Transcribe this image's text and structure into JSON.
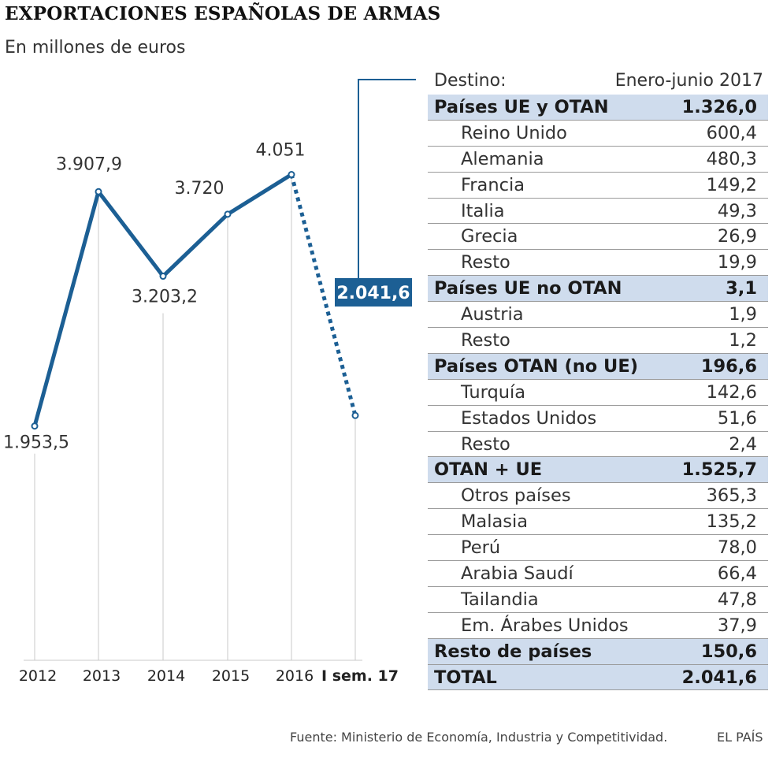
{
  "title": "EXPORTACIONES ESPAÑOLAS DE ARMAS",
  "subtitle": "En millones de euros",
  "colors": {
    "line": "#1c5f94",
    "group_bg": "#cfdced",
    "callout": "#1c5f94",
    "grid": "#c8c8c8"
  },
  "chart_data": {
    "type": "line",
    "categories": [
      "2012",
      "2013",
      "2014",
      "2015",
      "2016",
      "I sem. 17"
    ],
    "values": [
      1953.5,
      3907.9,
      3203.2,
      3720,
      4051,
      2041.6
    ],
    "labels": [
      "1.953,5",
      "3.907,9",
      "3.203,2",
      "3.720",
      "4.051",
      "2.041,6"
    ],
    "last_point_style": "dotted",
    "ylim": [
      0,
      4051
    ],
    "grid": "vertical drop lines"
  },
  "table": {
    "header_left": "Destino:",
    "header_right": "Enero-junio 2017",
    "rows": [
      {
        "name": "Países UE y OTAN",
        "value": "1.326,0",
        "group": true
      },
      {
        "name": "Reino Unido",
        "value": "600,4",
        "group": false
      },
      {
        "name": "Alemania",
        "value": "480,3",
        "group": false
      },
      {
        "name": "Francia",
        "value": "149,2",
        "group": false
      },
      {
        "name": "Italia",
        "value": "49,3",
        "group": false
      },
      {
        "name": "Grecia",
        "value": "26,9",
        "group": false
      },
      {
        "name": "Resto",
        "value": "19,9",
        "group": false
      },
      {
        "name": "Países UE no OTAN",
        "value": "3,1",
        "group": true
      },
      {
        "name": "Austria",
        "value": "1,9",
        "group": false
      },
      {
        "name": "Resto",
        "value": "1,2",
        "group": false
      },
      {
        "name": "Países OTAN (no UE)",
        "value": "196,6",
        "group": true
      },
      {
        "name": "Turquía",
        "value": "142,6",
        "group": false
      },
      {
        "name": "Estados Unidos",
        "value": "51,6",
        "group": false
      },
      {
        "name": "Resto",
        "value": "2,4",
        "group": false
      },
      {
        "name": "OTAN + UE",
        "value": "1.525,7",
        "group": true
      },
      {
        "name": "Otros países",
        "value": "365,3",
        "group": false
      },
      {
        "name": "Malasia",
        "value": "135,2",
        "group": false
      },
      {
        "name": "Perú",
        "value": "78,0",
        "group": false
      },
      {
        "name": "Arabia Saudí",
        "value": "66,4",
        "group": false
      },
      {
        "name": "Tailandia",
        "value": "47,8",
        "group": false
      },
      {
        "name": "Em. Árabes Unidos",
        "value": "37,9",
        "group": false
      },
      {
        "name": "Resto de países",
        "value": "150,6",
        "group": true
      },
      {
        "name": "TOTAL",
        "value": "2.041,6",
        "group": true
      }
    ]
  },
  "source": "Fuente: Ministerio de Economía, Industria y Competitividad.",
  "brand": "EL PAÍS"
}
